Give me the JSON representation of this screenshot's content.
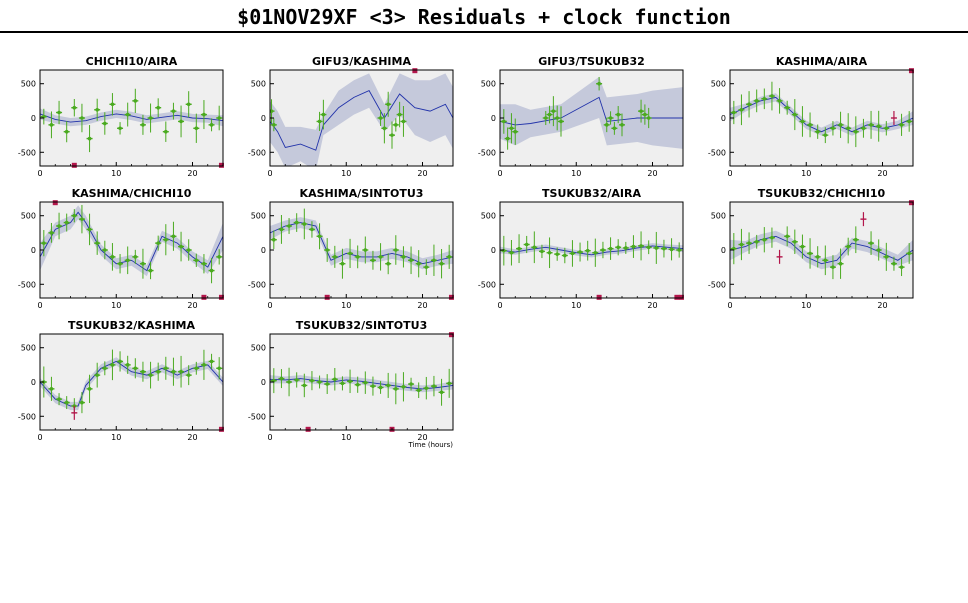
{
  "page": {
    "title": "$01NOV29XF <3> Residuals + clock function"
  },
  "colors": {
    "panel_bg": "#efefef",
    "band": "#c5c9db",
    "clock_line": "#2233aa",
    "points": "#4aaa1f",
    "flagged": "#b3164b"
  },
  "chart_data": [
    {
      "type": "scatter",
      "title": "CHICHI10/AIRA",
      "xlim": [
        0,
        24
      ],
      "ylim": [
        -700,
        700
      ],
      "xticks": [
        0,
        10,
        20
      ],
      "yticks": [
        -500,
        0,
        500
      ],
      "model_x": [
        0,
        2,
        4,
        6,
        8,
        10,
        12,
        14,
        16,
        18,
        20,
        22,
        24
      ],
      "model_y": [
        60,
        -20,
        -60,
        -40,
        20,
        60,
        30,
        -20,
        10,
        40,
        0,
        -10,
        -40
      ],
      "band": [
        80,
        60,
        60,
        60,
        60,
        60,
        60,
        60,
        60,
        60,
        60,
        60,
        80
      ],
      "points_x": [
        0.5,
        1.5,
        2.5,
        3.5,
        4.5,
        5.5,
        6.5,
        7.5,
        8.5,
        9.5,
        10.5,
        11.5,
        12.5,
        13.5,
        14.5,
        15.5,
        16.5,
        17.5,
        18.5,
        19.5,
        20.5,
        21.5,
        22.5,
        23.5
      ],
      "points_y": [
        20,
        -100,
        80,
        -200,
        150,
        0,
        -300,
        120,
        -80,
        200,
        -150,
        50,
        250,
        -100,
        0,
        150,
        -200,
        100,
        -50,
        200,
        -150,
        50,
        -100,
        0
      ],
      "flagged_x": [
        4.5,
        23.8
      ],
      "flagged_y": [
        -690,
        -690
      ]
    },
    {
      "type": "scatter",
      "title": "GIFU3/KASHIMA",
      "xlim": [
        0,
        24
      ],
      "ylim": [
        -700,
        700
      ],
      "xticks": [
        0,
        10,
        20
      ],
      "yticks": [
        -500,
        0,
        500
      ],
      "model_x": [
        0,
        1,
        2,
        4,
        6,
        7,
        9,
        11,
        13,
        15,
        17,
        19,
        21,
        23,
        24
      ],
      "model_y": [
        -50,
        -200,
        -430,
        -380,
        -470,
        -100,
        150,
        300,
        400,
        0,
        350,
        150,
        100,
        200,
        0
      ],
      "band": [
        300,
        300,
        300,
        250,
        300,
        150,
        250,
        250,
        250,
        200,
        300,
        400,
        450,
        450,
        450
      ],
      "points_x": [
        0.2,
        0.5,
        6.5,
        7.0,
        14.5,
        15.0,
        15.5,
        16.0,
        16.5,
        17.0,
        17.5
      ],
      "points_y": [
        100,
        -100,
        -50,
        50,
        0,
        -150,
        200,
        -250,
        -100,
        50,
        -50
      ],
      "flagged_x": [
        19
      ],
      "flagged_y": [
        690
      ]
    },
    {
      "type": "scatter",
      "title": "GIFU3/TSUKUB32",
      "xlim": [
        0,
        24
      ],
      "ylim": [
        -700,
        700
      ],
      "xticks": [
        0,
        10,
        20
      ],
      "yticks": [
        -500,
        0,
        500
      ],
      "model_x": [
        0,
        2,
        4,
        8,
        13,
        14,
        18,
        20,
        24
      ],
      "model_y": [
        -50,
        -100,
        -80,
        0,
        300,
        -50,
        0,
        0,
        0
      ],
      "band": [
        250,
        300,
        200,
        200,
        300,
        350,
        350,
        400,
        450
      ],
      "points_x": [
        0.5,
        1.0,
        1.5,
        2.0,
        6.0,
        6.5,
        7.0,
        7.5,
        8.0,
        13.0,
        14.0,
        14.5,
        15.0,
        15.5,
        16.0,
        18.5,
        19.0,
        19.5
      ],
      "points_y": [
        -50,
        -300,
        -150,
        -200,
        0,
        50,
        100,
        0,
        -50,
        500,
        -100,
        0,
        -150,
        50,
        -100,
        100,
        50,
        0
      ],
      "flagged_x": [],
      "flagged_y": []
    },
    {
      "type": "scatter",
      "title": "KASHIMA/AIRA",
      "xlim": [
        0,
        24
      ],
      "ylim": [
        -700,
        700
      ],
      "xticks": [
        0,
        10,
        20
      ],
      "yticks": [
        -500,
        0,
        500
      ],
      "model_x": [
        0,
        2,
        4,
        6,
        8,
        10,
        12,
        14,
        16,
        18,
        20,
        22,
        24
      ],
      "model_y": [
        50,
        150,
        250,
        300,
        100,
        -100,
        -200,
        -100,
        -200,
        -100,
        -150,
        -100,
        0
      ],
      "band": [
        100,
        60,
        60,
        60,
        60,
        60,
        60,
        60,
        60,
        60,
        60,
        60,
        100
      ],
      "points_x": [
        0.5,
        1.5,
        2.5,
        3.5,
        4.5,
        5.5,
        6.5,
        7.5,
        8.5,
        9.5,
        10.5,
        11.5,
        12.5,
        13.5,
        14.5,
        15.5,
        16.5,
        17.5,
        18.5,
        19.5,
        20.5,
        22.5,
        23.5
      ],
      "points_y": [
        80,
        120,
        200,
        250,
        280,
        320,
        250,
        150,
        50,
        -50,
        -100,
        -200,
        -250,
        -150,
        -100,
        -150,
        -200,
        -150,
        -100,
        -120,
        -150,
        -100,
        -50
      ],
      "flagged_x": [
        21.5,
        23.8
      ],
      "flagged_y": [
        0,
        690
      ]
    },
    {
      "type": "scatter",
      "title": "KASHIMA/CHICHI10",
      "xlim": [
        0,
        24
      ],
      "ylim": [
        -700,
        700
      ],
      "xticks": [
        0,
        10,
        20
      ],
      "yticks": [
        -500,
        0,
        500
      ],
      "model_x": [
        0,
        2,
        4,
        5,
        6,
        8,
        10,
        12,
        14,
        16,
        18,
        20,
        22,
        24
      ],
      "model_y": [
        -100,
        300,
        400,
        550,
        400,
        0,
        -200,
        -150,
        -300,
        200,
        100,
        -100,
        -250,
        200
      ],
      "band": [
        200,
        100,
        100,
        100,
        100,
        80,
        80,
        80,
        80,
        80,
        80,
        80,
        100,
        200
      ],
      "points_x": [
        0.5,
        1.5,
        2.5,
        3.5,
        4.5,
        5.5,
        6.5,
        7.5,
        8.5,
        9.5,
        10.5,
        11.5,
        12.5,
        13.5,
        14.5,
        15.5,
        16.5,
        17.5,
        18.5,
        19.5,
        20.5,
        21.5,
        22.5,
        23.5
      ],
      "points_y": [
        100,
        250,
        350,
        400,
        500,
        450,
        300,
        100,
        0,
        -100,
        -200,
        -150,
        -100,
        -200,
        -300,
        100,
        150,
        200,
        50,
        0,
        -150,
        -200,
        -300,
        -100
      ],
      "flagged_x": [
        2,
        21.5,
        23.8
      ],
      "flagged_y": [
        690,
        -690,
        -690
      ]
    },
    {
      "type": "scatter",
      "title": "KASHIMA/SINTOTU3",
      "xlim": [
        0,
        24
      ],
      "ylim": [
        -700,
        700
      ],
      "xticks": [
        0,
        10,
        20
      ],
      "yticks": [
        -500,
        0,
        500
      ],
      "model_x": [
        0,
        2,
        4,
        6,
        7,
        8,
        10,
        12,
        14,
        16,
        18,
        20,
        22,
        24
      ],
      "model_y": [
        250,
        350,
        400,
        350,
        100,
        -150,
        -50,
        -100,
        -100,
        -50,
        -100,
        -200,
        -150,
        -100
      ],
      "band": [
        100,
        80,
        80,
        80,
        80,
        80,
        80,
        80,
        80,
        80,
        80,
        80,
        80,
        100
      ],
      "points_x": [
        0.5,
        1.5,
        2.5,
        3.5,
        4.5,
        5.5,
        6.5,
        7.5,
        8.5,
        9.5,
        10.5,
        11.5,
        12.5,
        13.5,
        14.5,
        15.5,
        16.5,
        17.5,
        18.5,
        19.5,
        20.5,
        21.5,
        22.5,
        23.5
      ],
      "points_y": [
        150,
        300,
        350,
        400,
        380,
        300,
        200,
        0,
        -100,
        -200,
        -50,
        -100,
        0,
        -150,
        -100,
        -200,
        0,
        -100,
        -150,
        -200,
        -250,
        -150,
        -200,
        -100
      ],
      "flagged_x": [
        7.5,
        23.8
      ],
      "flagged_y": [
        -690,
        -690
      ]
    },
    {
      "type": "scatter",
      "title": "TSUKUB32/AIRA",
      "xlim": [
        0,
        24
      ],
      "ylim": [
        -700,
        700
      ],
      "xticks": [
        0,
        10,
        20
      ],
      "yticks": [
        -500,
        0,
        500
      ],
      "model_x": [
        0,
        2,
        4,
        6,
        8,
        10,
        12,
        14,
        16,
        18,
        20,
        22,
        24
      ],
      "model_y": [
        0,
        -30,
        10,
        40,
        0,
        -40,
        -70,
        -30,
        -10,
        30,
        60,
        40,
        20
      ],
      "band": [
        50,
        40,
        40,
        40,
        40,
        40,
        40,
        40,
        40,
        40,
        40,
        40,
        50
      ],
      "points_x": [
        0.5,
        1.5,
        2.5,
        3.5,
        4.5,
        5.5,
        6.5,
        7.5,
        8.5,
        9.5,
        10.5,
        11.5,
        12.5,
        13.5,
        14.5,
        15.5,
        16.5,
        17.5,
        18.5,
        19.5,
        20.5,
        21.5,
        22.5,
        23.5
      ],
      "points_y": [
        -10,
        -40,
        20,
        80,
        40,
        -20,
        -40,
        -60,
        -80,
        -50,
        -30,
        -10,
        -40,
        0,
        20,
        40,
        30,
        50,
        60,
        40,
        30,
        20,
        10,
        0
      ],
      "flagged_x": [
        13,
        23.2,
        23.8
      ],
      "flagged_y": [
        -690,
        -690,
        -690
      ]
    },
    {
      "type": "scatter",
      "title": "TSUKUB32/CHICHI10",
      "xlim": [
        0,
        24
      ],
      "ylim": [
        -700,
        700
      ],
      "xticks": [
        0,
        10,
        20
      ],
      "yticks": [
        -500,
        0,
        500
      ],
      "model_x": [
        0,
        2,
        4,
        6,
        8,
        10,
        12,
        14,
        16,
        18,
        20,
        22,
        24
      ],
      "model_y": [
        0,
        50,
        150,
        200,
        100,
        -100,
        -200,
        -150,
        100,
        50,
        -50,
        -150,
        0
      ],
      "band": [
        150,
        80,
        80,
        80,
        80,
        80,
        80,
        80,
        80,
        80,
        80,
        80,
        150
      ],
      "points_x": [
        0.5,
        1.5,
        2.5,
        3.5,
        4.5,
        5.5,
        7.5,
        8.5,
        9.5,
        10.5,
        11.5,
        12.5,
        13.5,
        14.5,
        15.5,
        16.5,
        18.5,
        19.5,
        20.5,
        21.5,
        22.5,
        23.5
      ],
      "points_y": [
        20,
        80,
        100,
        120,
        150,
        180,
        200,
        120,
        50,
        -50,
        -100,
        -150,
        -250,
        -200,
        50,
        150,
        100,
        0,
        -100,
        -200,
        -250,
        -50
      ],
      "flagged_x": [
        6.5,
        17.5,
        23.8
      ],
      "flagged_y": [
        -100,
        450,
        690
      ]
    },
    {
      "type": "scatter",
      "title": "TSUKUB32/KASHIMA",
      "xlim": [
        0,
        24
      ],
      "ylim": [
        -700,
        700
      ],
      "xticks": [
        0,
        10,
        20
      ],
      "yticks": [
        -500,
        0,
        500
      ],
      "model_x": [
        0,
        2,
        4,
        5,
        6,
        8,
        10,
        12,
        14,
        16,
        18,
        20,
        22,
        24
      ],
      "model_y": [
        0,
        -250,
        -350,
        -350,
        -50,
        200,
        300,
        150,
        100,
        200,
        100,
        200,
        250,
        0
      ],
      "band": [
        60,
        60,
        60,
        60,
        60,
        60,
        60,
        60,
        60,
        60,
        60,
        60,
        60,
        60
      ],
      "points_x": [
        0.5,
        1.5,
        2.5,
        3.5,
        4.5,
        5.5,
        6.5,
        7.5,
        8.5,
        9.5,
        10.5,
        11.5,
        12.5,
        13.5,
        14.5,
        15.5,
        16.5,
        17.5,
        18.5,
        19.5,
        20.5,
        21.5,
        22.5,
        23.5
      ],
      "points_y": [
        0,
        -100,
        -250,
        -300,
        -350,
        -300,
        -100,
        100,
        200,
        250,
        300,
        250,
        200,
        150,
        100,
        150,
        200,
        150,
        150,
        100,
        200,
        250,
        300,
        200
      ],
      "flagged_x": [
        4.5,
        23.8
      ],
      "flagged_y": [
        -450,
        -690
      ]
    },
    {
      "type": "scatter",
      "title": "TSUKUB32/SINTOTU3",
      "xlim": [
        0,
        24
      ],
      "ylim": [
        -700,
        700
      ],
      "xticks": [
        0,
        10,
        20
      ],
      "yticks": [
        -500,
        0,
        500
      ],
      "xlabel": "Time (hours)",
      "model_x": [
        0,
        2,
        4,
        6,
        8,
        10,
        12,
        14,
        16,
        18,
        20,
        22,
        24
      ],
      "model_y": [
        40,
        30,
        50,
        20,
        0,
        30,
        10,
        -20,
        -50,
        -80,
        -100,
        -80,
        -50
      ],
      "band": [
        60,
        50,
        50,
        50,
        50,
        50,
        50,
        50,
        50,
        50,
        50,
        50,
        60
      ],
      "points_x": [
        0.5,
        1.5,
        2.5,
        3.5,
        4.5,
        5.5,
        6.5,
        7.5,
        8.5,
        9.5,
        10.5,
        11.5,
        12.5,
        13.5,
        14.5,
        15.5,
        16.5,
        17.5,
        18.5,
        19.5,
        20.5,
        21.5,
        22.5,
        23.5
      ],
      "points_y": [
        20,
        50,
        0,
        30,
        -50,
        20,
        0,
        -30,
        40,
        -20,
        10,
        -40,
        -10,
        -60,
        -80,
        -50,
        -100,
        -70,
        -30,
        -120,
        -90,
        -60,
        -150,
        -20
      ],
      "flagged_x": [
        5,
        16,
        23.8
      ],
      "flagged_y": [
        -690,
        -690,
        690
      ]
    }
  ]
}
